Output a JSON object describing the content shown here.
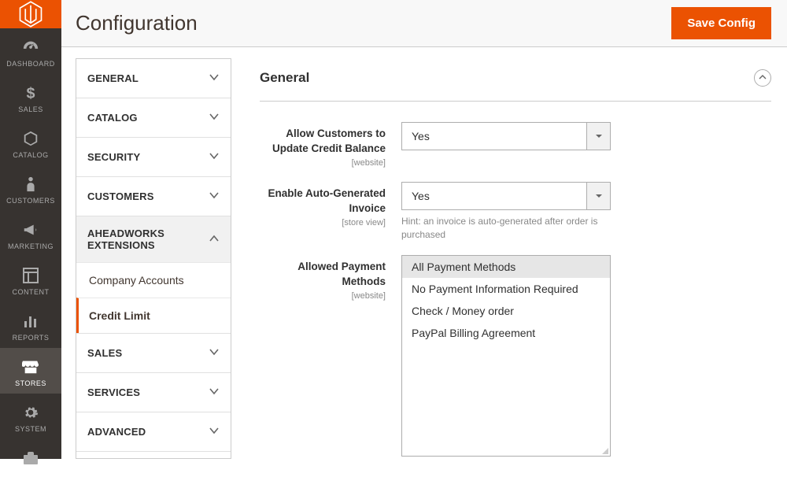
{
  "header": {
    "page_title": "Configuration",
    "save_button": "Save Config"
  },
  "colors": {
    "accent": "#eb5202",
    "sidebar_bg": "#373330",
    "sidebar_active": "#524d49",
    "border": "#adadad"
  },
  "admin_nav": {
    "items": [
      {
        "label": "DASHBOARD",
        "icon": "gauge"
      },
      {
        "label": "SALES",
        "icon": "dollar"
      },
      {
        "label": "CATALOG",
        "icon": "cube"
      },
      {
        "label": "CUSTOMERS",
        "icon": "person"
      },
      {
        "label": "MARKETING",
        "icon": "megaphone"
      },
      {
        "label": "CONTENT",
        "icon": "layout"
      },
      {
        "label": "REPORTS",
        "icon": "bars"
      },
      {
        "label": "STORES",
        "icon": "store",
        "active": true
      },
      {
        "label": "SYSTEM",
        "icon": "gear"
      },
      {
        "label": "",
        "icon": "briefcase"
      }
    ]
  },
  "config_nav": {
    "sections": [
      {
        "label": "GENERAL",
        "expanded": false
      },
      {
        "label": "CATALOG",
        "expanded": false
      },
      {
        "label": "SECURITY",
        "expanded": false
      },
      {
        "label": "CUSTOMERS",
        "expanded": false
      },
      {
        "label": "AHEADWORKS EXTENSIONS",
        "expanded": true,
        "children": [
          {
            "label": "Company Accounts",
            "active": false
          },
          {
            "label": "Credit Limit",
            "active": true
          }
        ]
      },
      {
        "label": "SALES",
        "expanded": false
      },
      {
        "label": "SERVICES",
        "expanded": false
      },
      {
        "label": "ADVANCED",
        "expanded": false
      }
    ]
  },
  "content": {
    "section_title": "General",
    "fields": {
      "allow_update": {
        "label": "Allow Customers to Update Credit Balance",
        "scope": "[website]",
        "value": "Yes"
      },
      "auto_invoice": {
        "label": "Enable Auto-Generated Invoice",
        "scope": "[store view]",
        "value": "Yes",
        "hint": "Hint: an invoice is auto-generated after order is purchased"
      },
      "allowed_methods": {
        "label": "Allowed Payment Methods",
        "scope": "[website]",
        "options": [
          {
            "label": "All Payment Methods",
            "selected": true
          },
          {
            "label": "No Payment Information Required",
            "selected": false
          },
          {
            "label": "Check / Money order",
            "selected": false
          },
          {
            "label": "PayPal Billing Agreement",
            "selected": false
          }
        ]
      }
    }
  }
}
